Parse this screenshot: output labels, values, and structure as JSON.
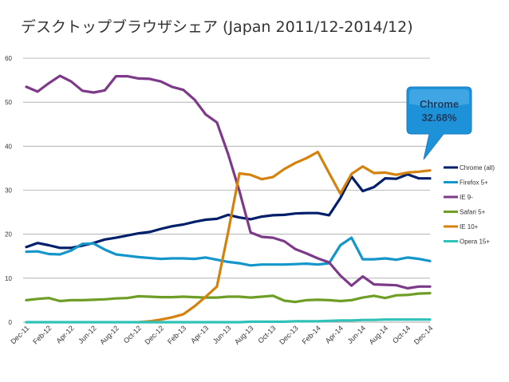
{
  "chart_data": {
    "type": "line",
    "title": "デスクトップブラウザシェア (Japan 2011/12-2014/12)",
    "xlabel": "",
    "ylabel": "",
    "ylim": [
      0,
      60
    ],
    "yticks": [
      0,
      10,
      20,
      30,
      40,
      50,
      60
    ],
    "grid": true,
    "legend": "right",
    "x_tick_labels": [
      "Dec-11",
      "Feb-12",
      "Apr-12",
      "Jun-12",
      "Aug-12",
      "Oct-12",
      "Dec-12",
      "Feb-13",
      "Apr-13",
      "Jun-13",
      "Aug-13",
      "Oct-13",
      "Dec-13",
      "Feb-14",
      "Apr-14",
      "Jun-14",
      "Aug-14",
      "Oct-14",
      "Dec-14"
    ],
    "series": [
      {
        "name": "Chrome (all)",
        "color": "#001f6b",
        "values": [
          17.1,
          18.0,
          17.5,
          16.9,
          16.9,
          17.4,
          18.0,
          18.8,
          19.2,
          19.7,
          20.2,
          20.5,
          21.2,
          21.8,
          22.2,
          22.8,
          23.3,
          23.5,
          24.4,
          23.8,
          23.4,
          24.0,
          24.3,
          24.4,
          24.7,
          24.8,
          24.8,
          24.3,
          28.2,
          33.1,
          29.8,
          30.7,
          32.7,
          32.6,
          33.6,
          32.7,
          32.68
        ]
      },
      {
        "name": "Firefox 5+",
        "color": "#1496cb",
        "values": [
          16.0,
          16.1,
          15.5,
          15.4,
          16.3,
          17.8,
          17.9,
          16.5,
          15.4,
          15.1,
          14.8,
          14.6,
          14.4,
          14.5,
          14.5,
          14.4,
          14.7,
          14.2,
          13.7,
          13.4,
          12.9,
          13.1,
          13.1,
          13.1,
          13.2,
          13.3,
          13.1,
          13.4,
          17.5,
          19.2,
          14.3,
          14.3,
          14.5,
          14.2,
          14.7,
          14.4,
          13.9
        ]
      },
      {
        "name": "IE 9-",
        "color": "#7c3a88",
        "values": [
          53.5,
          52.4,
          54.3,
          56.0,
          54.7,
          52.6,
          52.2,
          52.7,
          55.9,
          55.9,
          55.4,
          55.3,
          54.7,
          53.5,
          52.8,
          50.6,
          47.2,
          45.4,
          38.2,
          29.8,
          20.4,
          19.4,
          19.2,
          18.4,
          16.6,
          15.6,
          14.5,
          13.6,
          10.6,
          8.3,
          10.4,
          8.6,
          8.5,
          8.4,
          7.7,
          8.1,
          8.1
        ]
      },
      {
        "name": "Safari 5+",
        "color": "#6f9e27",
        "values": [
          5.0,
          5.3,
          5.5,
          4.8,
          5.0,
          5.0,
          5.1,
          5.2,
          5.4,
          5.5,
          5.9,
          5.8,
          5.7,
          5.7,
          5.8,
          5.7,
          5.6,
          5.6,
          5.8,
          5.8,
          5.6,
          5.8,
          6.0,
          4.9,
          4.6,
          5.0,
          5.1,
          5.0,
          4.8,
          5.0,
          5.6,
          6.0,
          5.5,
          6.1,
          6.2,
          6.5,
          6.6
        ]
      },
      {
        "name": "IE 10+",
        "color": "#d4820e",
        "values": [
          null,
          null,
          null,
          null,
          null,
          null,
          null,
          null,
          null,
          null,
          0.0,
          0.2,
          0.6,
          1.1,
          1.8,
          3.6,
          5.8,
          8.1,
          20.5,
          33.8,
          33.5,
          32.5,
          33.0,
          34.8,
          36.2,
          37.3,
          38.7,
          33.9,
          29.2,
          33.7,
          35.4,
          33.9,
          34.0,
          33.5,
          34.0,
          34.2,
          34.5
        ]
      },
      {
        "name": "Opera 15+",
        "color": "#2ec2b8",
        "values": [
          0.0,
          0.0,
          0.0,
          0.0,
          0.0,
          0.0,
          0.0,
          0.0,
          0.0,
          0.0,
          0.0,
          0.0,
          0.0,
          0.0,
          0.0,
          0.0,
          0.0,
          0.0,
          0.0,
          0.0,
          0.1,
          0.1,
          0.1,
          0.1,
          0.2,
          0.2,
          0.2,
          0.3,
          0.4,
          0.4,
          0.5,
          0.5,
          0.6,
          0.6,
          0.6,
          0.6,
          0.6
        ]
      }
    ],
    "annotation": {
      "label": "Chrome",
      "value": "32.68%",
      "color": "#1e92d8"
    }
  }
}
